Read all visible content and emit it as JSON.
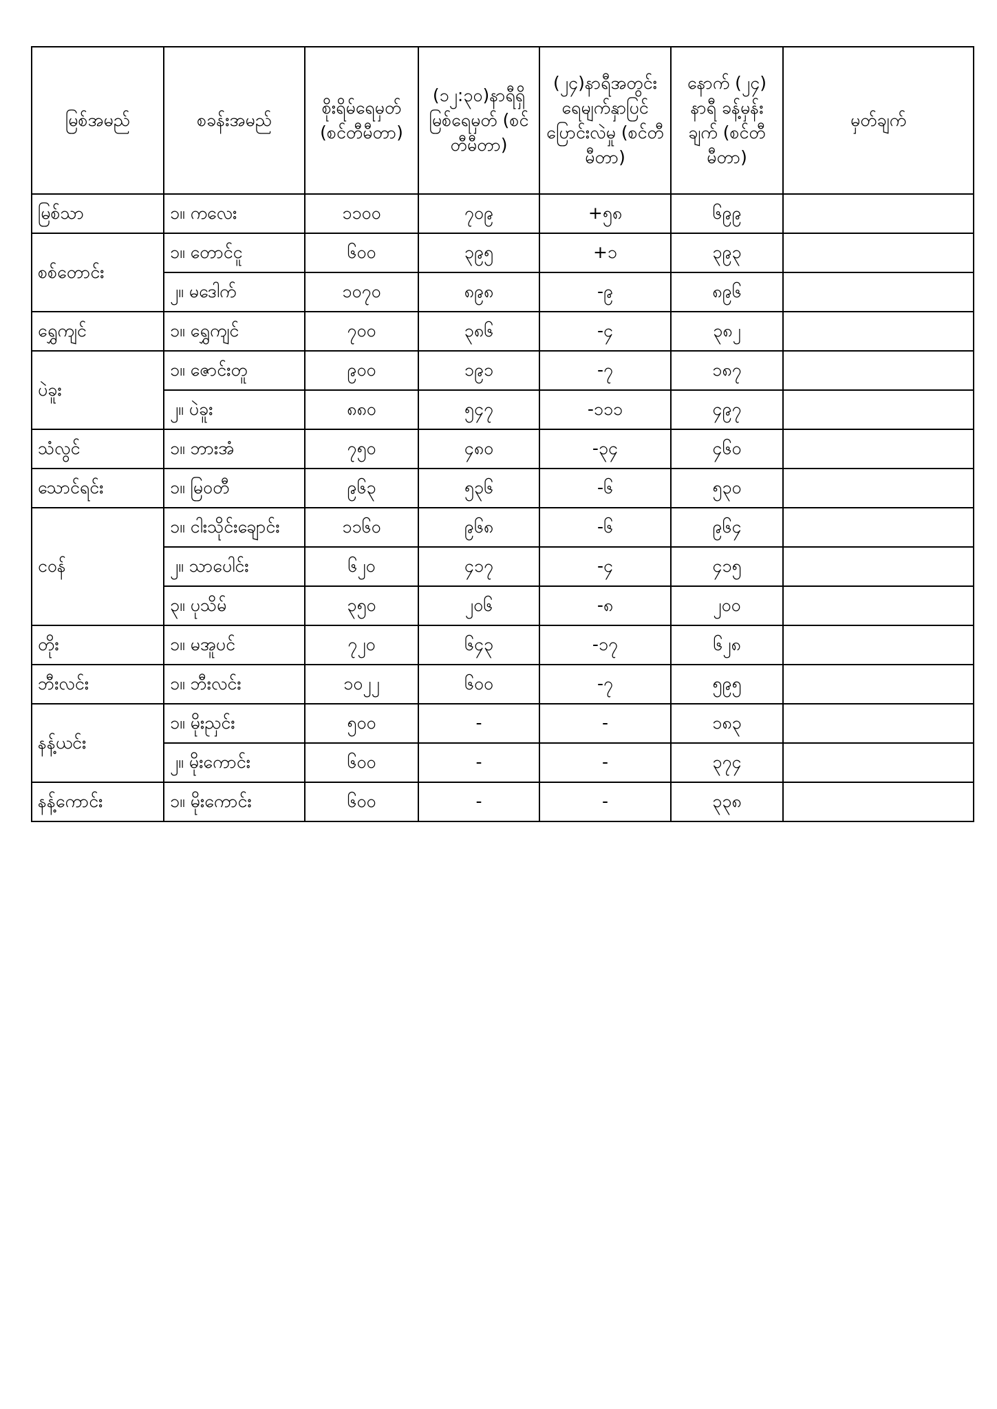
{
  "headers": {
    "river": "မြစ်အမည်",
    "station": "စခန်းအမည်",
    "danger": "စိုးရိမ်ရေမှတ် (စင်တီမီတာ)",
    "current": "(၁၂:၃၀)နာရီရှိ မြစ်ရေမှတ် (စင်တီမီတာ)",
    "change": "(၂၄)နာရီအတွင်း ရေမျက်နှာပြင် ပြောင်းလဲမှု (စင်တီမီတာ)",
    "forecast": "နောက် (၂၄) နာရီ ခန့်မှန်းချက် (စင်တီမီတာ)",
    "remarks": "မှတ်ချက်"
  },
  "rivers": [
    {
      "name": "မြစ်သာ",
      "stations": [
        {
          "station": "၁။ ကလေး",
          "danger": "၁၁၀၀",
          "current": "၇၀၉",
          "change": "+၅၈",
          "forecast": "၆၉၉"
        }
      ]
    },
    {
      "name": "စစ်တောင်း",
      "stations": [
        {
          "station": "၁။ တောင်ငူ",
          "danger": "၆၀၀",
          "current": "၃၉၅",
          "change": "+၁",
          "forecast": "၃၉၃"
        },
        {
          "station": "၂။ မဒေါက်",
          "danger": "၁၀၇၀",
          "current": "၈၉၈",
          "change": "-၉",
          "forecast": "၈၉၆"
        }
      ]
    },
    {
      "name": "ရွှေကျင်",
      "stations": [
        {
          "station": "၁။ ရွှေကျင်",
          "danger": "၇၀၀",
          "current": "၃၈၆",
          "change": "-၄",
          "forecast": "၃၈၂"
        }
      ]
    },
    {
      "name": "ပဲခူး",
      "stations": [
        {
          "station": "၁။ ဇောင်းတူ",
          "danger": "၉၀၀",
          "current": "၁၉၁",
          "change": "-၇",
          "forecast": "၁၈၇"
        },
        {
          "station": "၂။ ပဲခူး",
          "danger": "၈၈၀",
          "current": "၅၄၇",
          "change": "-၁၁၁",
          "forecast": "၄၉၇"
        }
      ]
    },
    {
      "name": "သံလွင်",
      "stations": [
        {
          "station": "၁။ ဘားအံ",
          "danger": "၇၅၀",
          "current": "၄၈၀",
          "change": "-၃၄",
          "forecast": "၄၆၀"
        }
      ]
    },
    {
      "name": "သောင်ရင်း",
      "stations": [
        {
          "station": "၁။ မြဝတီ",
          "danger": "၉၆၃",
          "current": "၅၃၆",
          "change": "-၆",
          "forecast": "၅၃၀"
        }
      ]
    },
    {
      "name": "ငဝန်",
      "stations": [
        {
          "station": "၁။ ငါးသိုင်းချောင်း",
          "danger": "၁၁၆၀",
          "current": "၉၆၈",
          "change": "-၆",
          "forecast": "၉၆၄"
        },
        {
          "station": "၂။ သာပေါင်း",
          "danger": "၆၂၀",
          "current": "၄၁၇",
          "change": "-၄",
          "forecast": "၄၁၅"
        },
        {
          "station": "၃။ ပုသိမ်",
          "danger": "၃၅၀",
          "current": "၂၀၆",
          "change": "-၈",
          "forecast": "၂၀၀"
        }
      ]
    },
    {
      "name": "တိုး",
      "stations": [
        {
          "station": "၁။ မအူပင်",
          "danger": "၇၂၀",
          "current": "၆၄၃",
          "change": "-၁၇",
          "forecast": "၆၂၈"
        }
      ]
    },
    {
      "name": "ဘီးလင်း",
      "stations": [
        {
          "station": "၁။ ဘီးလင်း",
          "danger": "၁၀၂၂",
          "current": "၆၀၀",
          "change": "-၇",
          "forecast": "၅၉၅"
        }
      ]
    },
    {
      "name": "နန့်ယင်း",
      "stations": [
        {
          "station": "၁။ မိုးညှင်း",
          "danger": "၅၀၀",
          "current": "-",
          "change": "-",
          "forecast": "၁၈၃"
        },
        {
          "station": "၂။ မိုးကောင်း",
          "danger": "၆၀၀",
          "current": "-",
          "change": "-",
          "forecast": "၃၇၄"
        }
      ]
    },
    {
      "name": "နန့်ကောင်း",
      "stations": [
        {
          "station": "၁။ မိုးကောင်း",
          "danger": "၆၀၀",
          "current": "-",
          "change": "-",
          "forecast": "၃၃၈"
        }
      ]
    }
  ]
}
